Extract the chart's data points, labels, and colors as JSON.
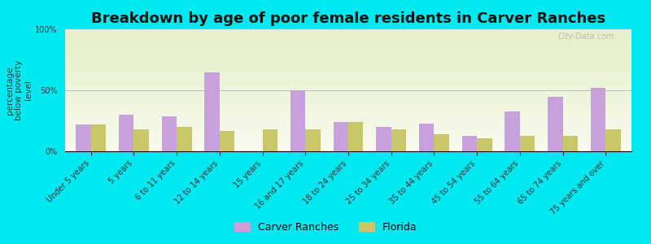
{
  "title": "Breakdown by age of poor female residents in Carver Ranches",
  "ylabel": "percentage\nbelow poverty\nlevel",
  "categories": [
    "Under 5 years",
    "5 years",
    "6 to 11 years",
    "12 to 14 years",
    "15 years",
    "16 and 17 years",
    "18 to 24 years",
    "25 to 34 years",
    "35 to 44 years",
    "45 to 54 years",
    "55 to 64 years",
    "65 to 74 years",
    "75 years and over"
  ],
  "carver_ranches": [
    22,
    30,
    29,
    65,
    0,
    50,
    24,
    20,
    23,
    13,
    33,
    45,
    52
  ],
  "florida": [
    22,
    18,
    20,
    17,
    18,
    18,
    24,
    18,
    14,
    11,
    13,
    13,
    18
  ],
  "carver_color": "#c8a0dc",
  "florida_color": "#c8c86a",
  "outer_bg": "#00e8f0",
  "ylim": [
    0,
    100
  ],
  "yticks": [
    0,
    50,
    100
  ],
  "ytick_labels": [
    "0%",
    "50%",
    "100%"
  ],
  "bar_width": 0.35,
  "title_fontsize": 13,
  "axis_label_fontsize": 7.5,
  "tick_fontsize": 7,
  "legend_fontsize": 9,
  "watermark": "City-Data.com"
}
